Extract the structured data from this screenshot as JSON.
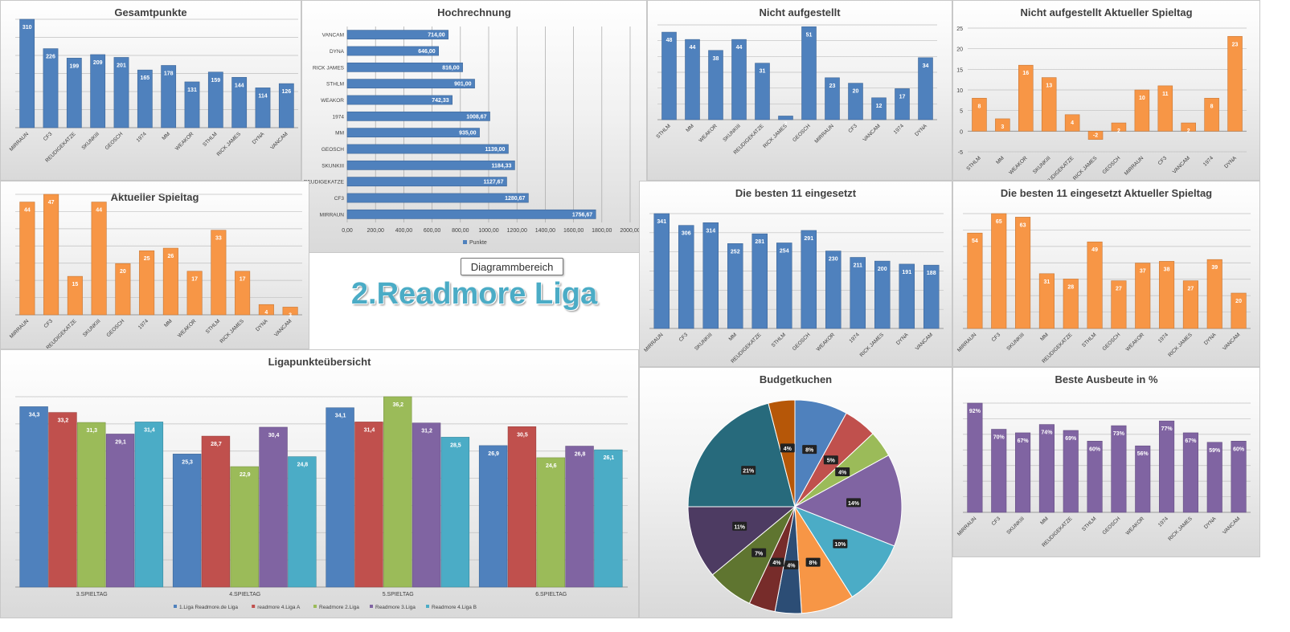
{
  "big_title": "2.Readmore Liga",
  "tooltip": "Diagrammbereich",
  "colors": {
    "blue": "#4f81bd",
    "orange": "#f79646",
    "purple": "#8064a2",
    "red": "#c0504d",
    "green": "#9bbb59",
    "cyan": "#4bacc6"
  },
  "chart_data": [
    {
      "id": "gesamtpunkte",
      "type": "bar",
      "title": "Gesamtpunkte",
      "color": "#4f81bd",
      "categories": [
        "MIRRAUN",
        "CF3",
        "REUDIGEKATZE",
        "SKUNKIII",
        "GEOSCH",
        "1974",
        "MM",
        "WEAKOR",
        "STHLM",
        "RICK JAMES",
        "DYNA",
        "VANCAM"
      ],
      "values": [
        310,
        226,
        199,
        209,
        201,
        165,
        178,
        131,
        159,
        144,
        114,
        126
      ],
      "ylim": [
        0,
        310
      ],
      "grid": true
    },
    {
      "id": "hochrechnung",
      "type": "hbar",
      "title": "Hochrechnung",
      "color": "#4f81bd",
      "categories": [
        "VANCAM",
        "DYNA",
        "RICK JAMES",
        "STHLM",
        "WEAKOR",
        "1974",
        "MM",
        "GEOSCH",
        "SKUNKIII",
        "REUDIGEKATZE",
        "CF3",
        "MIRRAUN"
      ],
      "values": [
        714,
        646,
        816,
        901,
        742.33,
        1008.67,
        935,
        1139,
        1184.33,
        1127.67,
        1280.67,
        1756.67
      ],
      "value_labels": [
        "714,00",
        "646,00",
        "816,00",
        "901,00",
        "742,33",
        "1008,67",
        "935,00",
        "1139,00",
        "1184,33",
        "1127,67",
        "1280,67",
        "1756,67"
      ],
      "xticks": [
        "0,00",
        "200,00",
        "400,00",
        "600,00",
        "800,00",
        "1000,00",
        "1200,00",
        "1400,00",
        "1600,00",
        "1800,00",
        "2000,00"
      ],
      "xlim": [
        0,
        2000
      ],
      "legend": "Punkte",
      "legend_position": "bottom"
    },
    {
      "id": "nicht_aufgestellt",
      "type": "bar",
      "title": "Nicht aufgestellt",
      "color": "#4f81bd",
      "categories": [
        "STHLM",
        "MM",
        "WEAKOR",
        "SKUNKIII",
        "REUDIGEKATZE",
        "RICK JAMES",
        "GEOSCH",
        "MIRRAUN",
        "CF3",
        "VANCAM",
        "1974",
        "DYNA"
      ],
      "values": [
        48,
        44,
        38,
        44,
        31,
        2,
        51,
        23,
        20,
        12,
        17,
        34
      ],
      "ylim": [
        0,
        52
      ]
    },
    {
      "id": "nicht_aufgestellt_aktuell",
      "type": "bar",
      "title": "Nicht aufgestellt Aktueller Spieltag",
      "color": "#f79646",
      "categories": [
        "STHLM",
        "MM",
        "WEAKOR",
        "SKUNKIII",
        "REUDIGEKATZE",
        "RICK JAMES",
        "GEOSCH",
        "MIRRAUN",
        "CF3",
        "VANCAM",
        "1974",
        "DYNA"
      ],
      "values": [
        8,
        3,
        16,
        13,
        4,
        -2,
        2,
        10,
        11,
        2,
        8,
        23
      ],
      "value_labels": [
        "8",
        "3",
        "16",
        "13",
        "4",
        "-2",
        "2",
        "10",
        "11",
        "2",
        "8",
        "23"
      ],
      "ylim": [
        -5,
        25
      ],
      "yticks": [
        "-5",
        "0",
        "5",
        "10",
        "15",
        "20",
        "25"
      ],
      "grid": true
    },
    {
      "id": "aktueller_spieltag",
      "type": "bar",
      "title": "Aktueller Spieltag",
      "color": "#f79646",
      "categories": [
        "MIRRAUN",
        "CF3",
        "REUDIGEKATZE",
        "SKUNKIII",
        "GEOSCH",
        "1974",
        "MM",
        "WEAKOR",
        "STHLM",
        "RICK JAMES",
        "DYNA",
        "VANCAM"
      ],
      "values": [
        44,
        47,
        15,
        44,
        20,
        25,
        26,
        17,
        33,
        17,
        4,
        3
      ],
      "ylim": [
        0,
        47
      ],
      "grid": true
    },
    {
      "id": "besten11",
      "type": "bar",
      "title": "Die besten 11 eingesetzt",
      "color": "#4f81bd",
      "categories": [
        "MIRRAUN",
        "CF3",
        "SKUNKIII",
        "MM",
        "REUDIGEKATZE",
        "STHLM",
        "GEOSCH",
        "WEAKOR",
        "1974",
        "RICK JAMES",
        "DYNA",
        "VANCAM"
      ],
      "values": [
        341,
        306,
        314,
        252,
        281,
        254,
        291,
        230,
        211,
        200,
        191,
        188
      ],
      "ylim": [
        0,
        341
      ]
    },
    {
      "id": "besten11_aktuell",
      "type": "bar",
      "title": "Die besten 11 eingesetzt Aktueller Spieltag",
      "color": "#f79646",
      "categories": [
        "MIRRAUN",
        "CF3",
        "SKUNKIII",
        "MM",
        "REUDIGEKATZE",
        "STHLM",
        "GEOSCH",
        "WEAKOR",
        "1974",
        "RICK JAMES",
        "DYNA",
        "VANCAM"
      ],
      "values": [
        54,
        65,
        63,
        31,
        28,
        49,
        27,
        37,
        38,
        27,
        39,
        20
      ],
      "ylim": [
        0,
        65
      ],
      "grid": true
    },
    {
      "id": "ligapunkte",
      "type": "grouped-bar",
      "title": "Ligapunkteübersicht",
      "categories": [
        "3.SPIELTAG",
        "4.SPIELTAG",
        "5.SPIELTAG",
        "6.SPIELTAG"
      ],
      "series": [
        {
          "name": "1.Liga Readmore.de Liga",
          "color": "#4f81bd",
          "values": [
            34.3,
            25.3,
            34.1,
            26.9
          ]
        },
        {
          "name": "readmore 4.Liga A",
          "color": "#c0504d",
          "values": [
            33.2,
            28.7,
            31.4,
            30.5
          ]
        },
        {
          "name": "Readmore 2.Liga",
          "color": "#9bbb59",
          "values": [
            31.3,
            22.9,
            36.2,
            24.6
          ]
        },
        {
          "name": "Readmore 3.Liga",
          "color": "#8064a2",
          "values": [
            29.1,
            30.4,
            31.2,
            26.8
          ]
        },
        {
          "name": "Readmore 4.Liga B",
          "color": "#4bacc6",
          "values": [
            31.4,
            24.8,
            28.5,
            26.1
          ]
        }
      ],
      "ylim": [
        0,
        36.2
      ],
      "legend_position": "bottom",
      "grid": true
    },
    {
      "id": "budgetkuchen",
      "type": "pie",
      "title": "Budgetkuchen",
      "values": [
        8,
        5,
        4,
        14,
        10,
        8,
        4,
        4,
        7,
        11,
        21,
        4
      ],
      "labels": [
        "8%",
        "5%",
        "4%",
        "14%",
        "10%",
        "8%",
        "4%",
        "4%",
        "7%",
        "11%",
        "21%",
        "4%"
      ],
      "colors": [
        "#4f81bd",
        "#c0504d",
        "#9bbb59",
        "#8064a2",
        "#4bacc6",
        "#f79646",
        "#2c4d75",
        "#772c2a",
        "#5f7530",
        "#4d3b62",
        "#276a7c",
        "#b65708"
      ]
    },
    {
      "id": "beste_ausbeute",
      "type": "bar",
      "title": "Beste Ausbeute in %",
      "color": "#8064a2",
      "categories": [
        "MIRRAUN",
        "CF3",
        "SKUNKIII",
        "MM",
        "REUDIGEKATZE",
        "STHLM",
        "GEOSCH",
        "WEAKOR",
        "1974",
        "RICK JAMES",
        "DYNA",
        "VANCAM"
      ],
      "values": [
        92,
        70,
        67,
        74,
        69,
        60,
        73,
        56,
        77,
        67,
        59,
        60
      ],
      "value_labels": [
        "92%",
        "70%",
        "67%",
        "74%",
        "69%",
        "60%",
        "73%",
        "56%",
        "77%",
        "67%",
        "59%",
        "60%"
      ],
      "ylim": [
        0,
        92
      ],
      "grid": true
    }
  ]
}
